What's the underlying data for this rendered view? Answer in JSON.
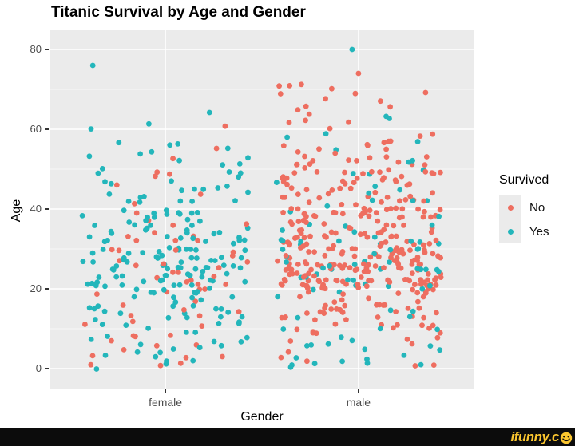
{
  "chart_data": {
    "type": "scatter",
    "variant": "jittered-categorical",
    "title": "Titanic Survival by Age and Gender",
    "xlabel": "Gender",
    "ylabel": "Age",
    "categories": [
      "female",
      "male"
    ],
    "y_ticks": [
      0,
      20,
      40,
      60,
      80
    ],
    "ylim": [
      -5,
      85
    ],
    "grid": {
      "background": "#EBEBEB",
      "major_color": "#FFFFFF",
      "minor_ticks": [
        10,
        30,
        50,
        70
      ]
    },
    "legend": {
      "title": "Survived",
      "position": "right",
      "entries": [
        {
          "label": "No",
          "color": "#EE6E60"
        },
        {
          "label": "Yes",
          "color": "#23B6BB"
        }
      ]
    },
    "point_radius": 3.4,
    "jitter_half_width": 0.43,
    "seed": 42,
    "groups": [
      {
        "category": "female",
        "survived": "No",
        "count": 64,
        "age_bins": [
          [
            1,
            10,
            13
          ],
          [
            10,
            20,
            11
          ],
          [
            20,
            30,
            20
          ],
          [
            30,
            40,
            11
          ],
          [
            40,
            50,
            6
          ],
          [
            50,
            58,
            2
          ],
          [
            58,
            64,
            1
          ]
        ]
      },
      {
        "category": "female",
        "survived": "Yes",
        "count": 196,
        "age_bins": [
          [
            0,
            10,
            19
          ],
          [
            10,
            20,
            34
          ],
          [
            20,
            30,
            63
          ],
          [
            30,
            40,
            44
          ],
          [
            40,
            50,
            21
          ],
          [
            50,
            58,
            12
          ],
          [
            58,
            64,
            3
          ]
        ]
      },
      {
        "category": "male",
        "survived": "No",
        "count": 359,
        "age_bins": [
          [
            1,
            10,
            13
          ],
          [
            10,
            20,
            49
          ],
          [
            20,
            30,
            120
          ],
          [
            30,
            40,
            83
          ],
          [
            40,
            50,
            52
          ],
          [
            50,
            60,
            26
          ],
          [
            60,
            70,
            13
          ],
          [
            70,
            72,
            3
          ]
        ]
      },
      {
        "category": "male",
        "survived": "Yes",
        "count": 92,
        "age_bins": [
          [
            0,
            10,
            19
          ],
          [
            10,
            20,
            7
          ],
          [
            20,
            30,
            27
          ],
          [
            30,
            40,
            20
          ],
          [
            40,
            50,
            11
          ],
          [
            50,
            58,
            5
          ],
          [
            58,
            65,
            3
          ]
        ]
      }
    ],
    "notable_points": [
      {
        "category": "female",
        "survived": "Yes",
        "age": 76,
        "jitter": -0.376
      },
      {
        "category": "male",
        "survived": "Yes",
        "age": 80,
        "jitter": -0.033
      },
      {
        "category": "male",
        "survived": "No",
        "age": 74,
        "jitter": 0.0
      }
    ]
  },
  "watermark": {
    "text": "ifunny.c",
    "smiley_color": "#FBC62F",
    "bar_color": "#0C0C0C"
  }
}
